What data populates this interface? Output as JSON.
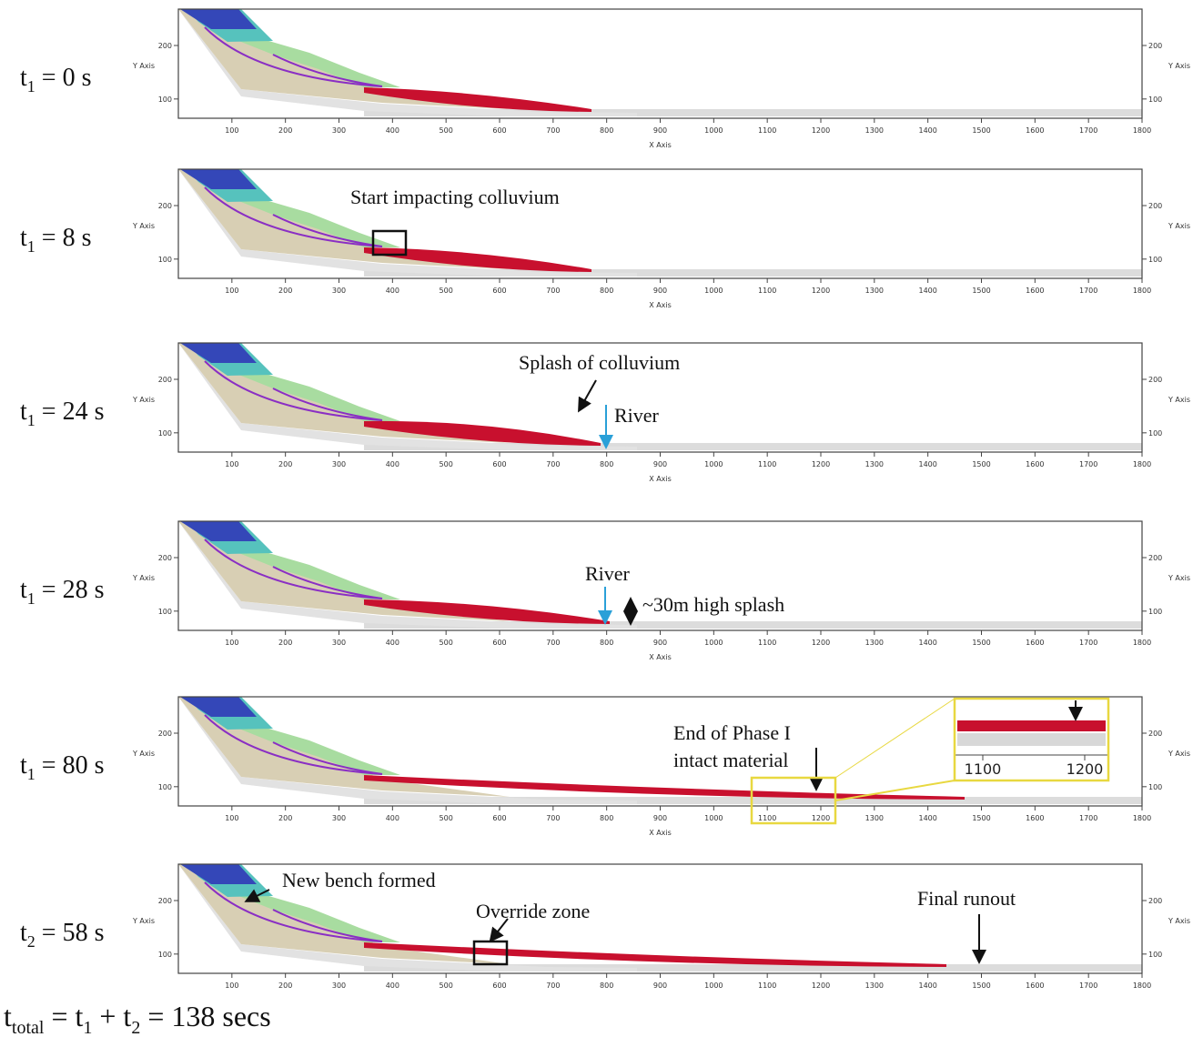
{
  "x_axis": {
    "label": "X Axis",
    "range": [
      0,
      1800
    ],
    "ticks": [
      100,
      200,
      300,
      400,
      500,
      600,
      700,
      800,
      900,
      1000,
      1100,
      1200,
      1300,
      1400,
      1500,
      1600,
      1700,
      1800
    ]
  },
  "y_axis": {
    "label": "Y Axis",
    "range": [
      64,
      268
    ],
    "ticks": [
      100,
      200
    ]
  },
  "panels": [
    {
      "time": {
        "symbol": "t",
        "subscript": "1",
        "rest": " = 0 s"
      },
      "annotations": []
    },
    {
      "time": {
        "symbol": "t",
        "subscript": "1",
        "rest": " = 8 s"
      },
      "annotations": [
        "Start impacting colluvium"
      ]
    },
    {
      "time": {
        "symbol": "t",
        "subscript": "1",
        "rest": " = 24 s"
      },
      "annotations": [
        "Splash of colluvium",
        "River"
      ]
    },
    {
      "time": {
        "symbol": "t",
        "subscript": "1",
        "rest": " = 28 s"
      },
      "annotations": [
        "River",
        "~30m high splash"
      ]
    },
    {
      "time": {
        "symbol": "t",
        "subscript": "1",
        "rest": " = 80 s"
      },
      "annotations": [
        "End of Phase  I",
        "intact material"
      ],
      "inset_ticks": [
        1100,
        1200
      ]
    },
    {
      "time": {
        "symbol": "t",
        "subscript": "2",
        "rest": " = 58 s"
      },
      "annotations": [
        "New bench formed",
        "Override zone",
        "Final runout"
      ]
    }
  ],
  "footer": {
    "parts": [
      "t",
      "total",
      " = t",
      "1",
      " + t",
      "2",
      " = 138 secs"
    ]
  }
}
